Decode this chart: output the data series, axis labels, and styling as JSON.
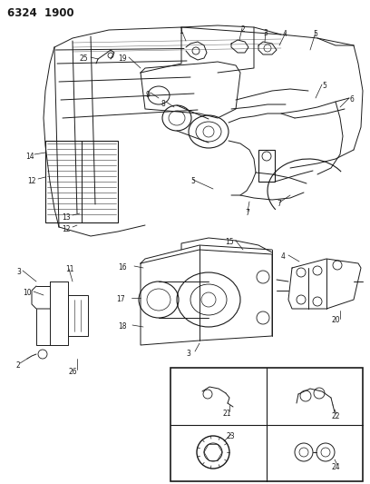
{
  "title": "6324  1900",
  "bg_color": "#ffffff",
  "lc": "#1a1a1a",
  "fig_width": 4.08,
  "fig_height": 5.33,
  "dpi": 100,
  "gray": "#888888",
  "lgray": "#cccccc"
}
